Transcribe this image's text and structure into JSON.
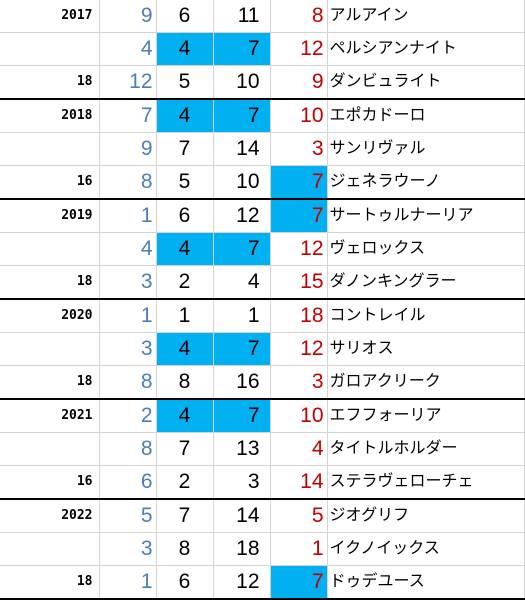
{
  "colors": {
    "highlight": "#00b0f0",
    "popularity_text": "#4a7ebb",
    "finish_text": "#c00000",
    "grid_line": "#d4d4d4",
    "block_line": "#000000"
  },
  "blocks": [
    {
      "year": "2017",
      "field_size": "18",
      "rows": [
        {
          "popularity": "9",
          "gate": "6",
          "number": "11",
          "finish": "8",
          "horse": "アルアイン",
          "gate_hl": false,
          "number_hl": false,
          "finish_hl": false
        },
        {
          "popularity": "4",
          "gate": "4",
          "number": "7",
          "finish": "12",
          "horse": "ペルシアンナイト",
          "gate_hl": true,
          "number_hl": true,
          "finish_hl": false
        },
        {
          "popularity": "12",
          "gate": "5",
          "number": "10",
          "finish": "9",
          "horse": "ダンビュライト",
          "gate_hl": false,
          "number_hl": false,
          "finish_hl": false
        }
      ]
    },
    {
      "year": "2018",
      "field_size": "16",
      "rows": [
        {
          "popularity": "7",
          "gate": "4",
          "number": "7",
          "finish": "10",
          "horse": "エポカドーロ",
          "gate_hl": true,
          "number_hl": true,
          "finish_hl": false
        },
        {
          "popularity": "9",
          "gate": "7",
          "number": "14",
          "finish": "3",
          "horse": "サンリヴァル",
          "gate_hl": false,
          "number_hl": false,
          "finish_hl": false
        },
        {
          "popularity": "8",
          "gate": "5",
          "number": "10",
          "finish": "7",
          "horse": "ジェネラウーノ",
          "gate_hl": false,
          "number_hl": false,
          "finish_hl": true
        }
      ]
    },
    {
      "year": "2019",
      "field_size": "18",
      "rows": [
        {
          "popularity": "1",
          "gate": "6",
          "number": "12",
          "finish": "7",
          "horse": "サートゥルナーリア",
          "gate_hl": false,
          "number_hl": false,
          "finish_hl": true
        },
        {
          "popularity": "4",
          "gate": "4",
          "number": "7",
          "finish": "12",
          "horse": "ヴェロックス",
          "gate_hl": true,
          "number_hl": true,
          "finish_hl": false
        },
        {
          "popularity": "3",
          "gate": "2",
          "number": "4",
          "finish": "15",
          "horse": "ダノンキングラー",
          "gate_hl": false,
          "number_hl": false,
          "finish_hl": false
        }
      ]
    },
    {
      "year": "2020",
      "field_size": "18",
      "rows": [
        {
          "popularity": "1",
          "gate": "1",
          "number": "1",
          "finish": "18",
          "horse": "コントレイル",
          "gate_hl": false,
          "number_hl": false,
          "finish_hl": false
        },
        {
          "popularity": "3",
          "gate": "4",
          "number": "7",
          "finish": "12",
          "horse": "サリオス",
          "gate_hl": true,
          "number_hl": true,
          "finish_hl": false
        },
        {
          "popularity": "8",
          "gate": "8",
          "number": "16",
          "finish": "3",
          "horse": "ガロアクリーク",
          "gate_hl": false,
          "number_hl": false,
          "finish_hl": false
        }
      ]
    },
    {
      "year": "2021",
      "field_size": "16",
      "rows": [
        {
          "popularity": "2",
          "gate": "4",
          "number": "7",
          "finish": "10",
          "horse": "エフフォーリア",
          "gate_hl": true,
          "number_hl": true,
          "finish_hl": false
        },
        {
          "popularity": "8",
          "gate": "7",
          "number": "13",
          "finish": "4",
          "horse": "タイトルホルダー",
          "gate_hl": false,
          "number_hl": false,
          "finish_hl": false
        },
        {
          "popularity": "6",
          "gate": "2",
          "number": "3",
          "finish": "14",
          "horse": "ステラヴェローチェ",
          "gate_hl": false,
          "number_hl": false,
          "finish_hl": false
        }
      ]
    },
    {
      "year": "2022",
      "field_size": "18",
      "rows": [
        {
          "popularity": "5",
          "gate": "7",
          "number": "14",
          "finish": "5",
          "horse": "ジオグリフ",
          "gate_hl": false,
          "number_hl": false,
          "finish_hl": false
        },
        {
          "popularity": "3",
          "gate": "8",
          "number": "18",
          "finish": "1",
          "horse": "イクノイックス",
          "gate_hl": false,
          "number_hl": false,
          "finish_hl": false
        },
        {
          "popularity": "1",
          "gate": "6",
          "number": "12",
          "finish": "7",
          "horse": "ドゥデユース",
          "gate_hl": false,
          "number_hl": false,
          "finish_hl": true
        }
      ]
    }
  ]
}
